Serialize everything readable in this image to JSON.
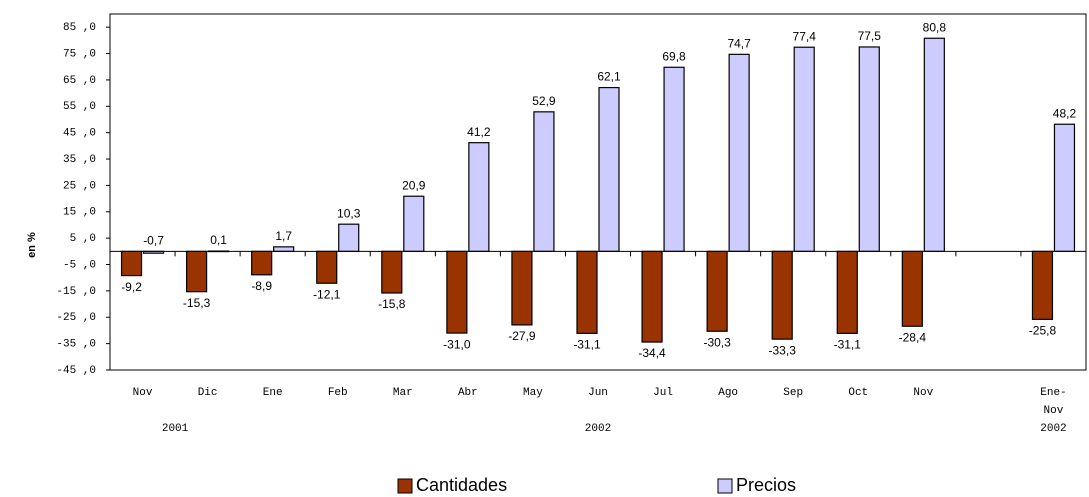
{
  "chart_data": {
    "type": "bar",
    "y_label": "en %",
    "categories": [
      "Nov",
      "Dic",
      "Ene",
      "Feb",
      "Mar",
      "Abr",
      "May",
      "Jun",
      "Jul",
      "Ago",
      "Sep",
      "Oct",
      "Nov",
      null,
      "Ene-\nNov\n2002"
    ],
    "groups": [
      {
        "label": "2001",
        "span": 2
      },
      {
        "label": "2002",
        "span": 11
      }
    ],
    "series": [
      {
        "name": "Cantidades",
        "color": "#993300",
        "values": [
          -9.2,
          -15.3,
          -8.9,
          -12.1,
          -15.8,
          -31.0,
          -27.9,
          -31.1,
          -34.4,
          -30.3,
          -33.3,
          -31.1,
          -28.4,
          null,
          -25.8
        ],
        "value_labels": [
          "-9,2",
          "-15,3",
          "-8,9",
          "-12,1",
          "-15,8",
          "-31,0",
          "-27,9",
          "-31,1",
          "-34,4",
          "-30,3",
          "-33,3",
          "-31,1",
          "-28,4",
          null,
          "-25,8"
        ]
      },
      {
        "name": "Precios",
        "color": "#ccccff",
        "values": [
          -0.7,
          0.1,
          1.7,
          10.3,
          20.9,
          41.2,
          52.9,
          62.1,
          69.8,
          74.7,
          77.4,
          77.5,
          80.8,
          null,
          48.2
        ],
        "value_labels": [
          "-0,7",
          "0,1",
          "1,7",
          "10,3",
          "20,9",
          "41,2",
          "52,9",
          "62,1",
          "69,8",
          "74,7",
          "77,4",
          "77,5",
          "80,8",
          null,
          "48,2"
        ]
      }
    ],
    "ylim": [
      -45,
      90
    ],
    "yticks": [
      {
        "value": 85,
        "label": "85 ,0"
      },
      {
        "value": 75,
        "label": "75 ,0"
      },
      {
        "value": 65,
        "label": "65 ,0"
      },
      {
        "value": 55,
        "label": "55 ,0"
      },
      {
        "value": 45,
        "label": "45 ,0"
      },
      {
        "value": 35,
        "label": "35 ,0"
      },
      {
        "value": 25,
        "label": "25 ,0"
      },
      {
        "value": 15,
        "label": "15 ,0"
      },
      {
        "value": 5,
        "label": "5 ,0"
      },
      {
        "value": -5,
        "label": "-5 ,0"
      },
      {
        "value": -15,
        "label": "-15 ,0"
      },
      {
        "value": -25,
        "label": "-25 ,0"
      },
      {
        "value": -35,
        "label": "-35 ,0"
      },
      {
        "value": -45,
        "label": "-45 ,0"
      }
    ],
    "grid": false,
    "legend": "bottom"
  }
}
